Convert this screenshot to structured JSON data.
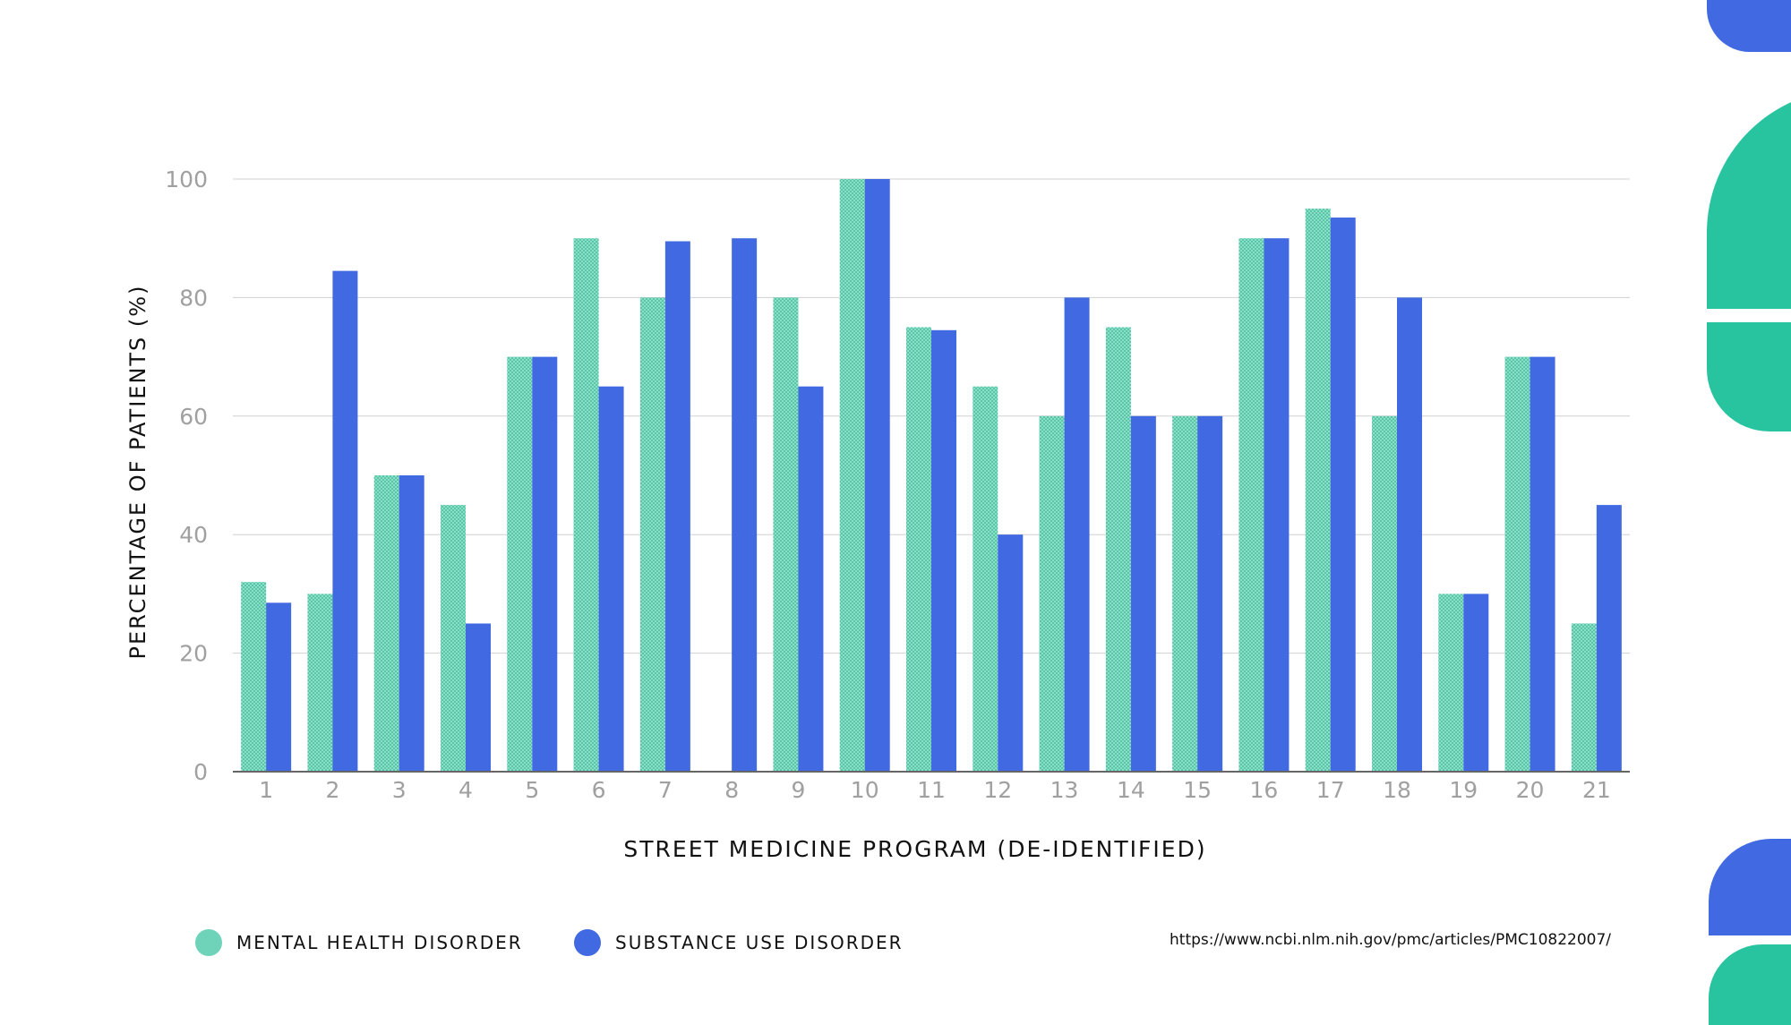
{
  "chart_data": {
    "type": "bar",
    "xlabel": "STREET MEDICINE PROGRAM (DE-IDENTIFIED)",
    "ylabel": "PERCENTAGE OF PATIENTS (%)",
    "ylim": [
      0,
      100
    ],
    "yticks": [
      0,
      20,
      40,
      60,
      80,
      100
    ],
    "grid": true,
    "legend_position": "bottom-left",
    "categories": [
      "1",
      "2",
      "3",
      "4",
      "5",
      "6",
      "7",
      "8",
      "9",
      "10",
      "11",
      "12",
      "13",
      "14",
      "15",
      "16",
      "17",
      "18",
      "19",
      "20",
      "21"
    ],
    "series": [
      {
        "name": "MENTAL HEALTH DISORDER",
        "color": "#6fd3b9",
        "pattern": "hatched",
        "values": [
          32,
          30,
          50,
          45,
          70,
          90,
          80,
          0,
          80,
          100,
          75,
          65,
          60,
          75,
          60,
          90,
          95,
          60,
          30,
          70,
          25
        ]
      },
      {
        "name": "SUBSTANCE USE DISORDER",
        "color": "#4169e1",
        "pattern": "solid",
        "values": [
          28.5,
          84.5,
          50,
          25,
          70,
          65,
          89.5,
          90,
          65,
          100,
          74.5,
          40,
          80,
          60,
          60,
          90,
          93.5,
          80,
          30,
          70,
          45
        ]
      }
    ]
  },
  "source": "https://www.ncbi.nlm.nih.gov/pmc/articles/PMC10822007/",
  "colors": {
    "accent_blue": "#4169e1",
    "accent_green": "#28c4a0",
    "grid": "#d0d0d0",
    "tick_label": "#a0a0a0"
  }
}
